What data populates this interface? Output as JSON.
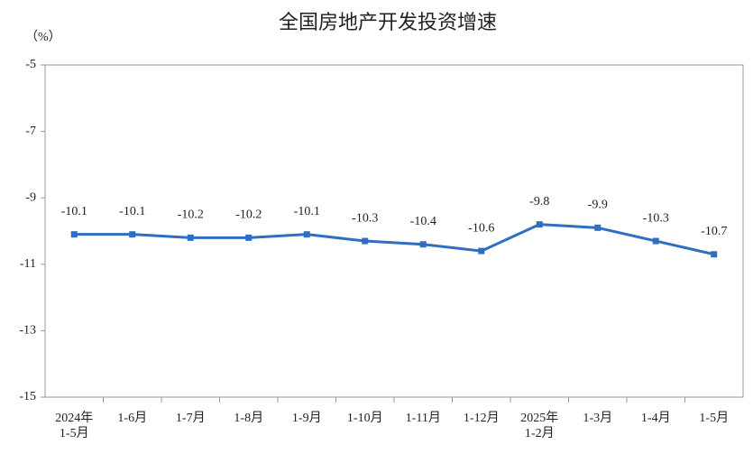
{
  "chart_data": {
    "type": "line",
    "title": "全国房地产开发投资增速",
    "y_label": "（%）",
    "categories": [
      "2024年\n1-5月",
      "1-6月",
      "1-7月",
      "1-8月",
      "1-9月",
      "1-10月",
      "1-11月",
      "1-12月",
      "2025年\n1-2月",
      "1-3月",
      "1-4月",
      "1-5月"
    ],
    "series": [
      {
        "name": "全国房地产开发投资增速",
        "color": "#2f6fc2",
        "values": [
          -10.1,
          -10.1,
          -10.2,
          -10.2,
          -10.1,
          -10.3,
          -10.4,
          -10.6,
          -9.8,
          -9.9,
          -10.3,
          -10.7
        ]
      }
    ],
    "ylim": [
      -15,
      -5
    ],
    "yticks": [
      -15,
      -13,
      -11,
      -9,
      -7,
      -5
    ],
    "grid": false,
    "data_labels": true
  }
}
